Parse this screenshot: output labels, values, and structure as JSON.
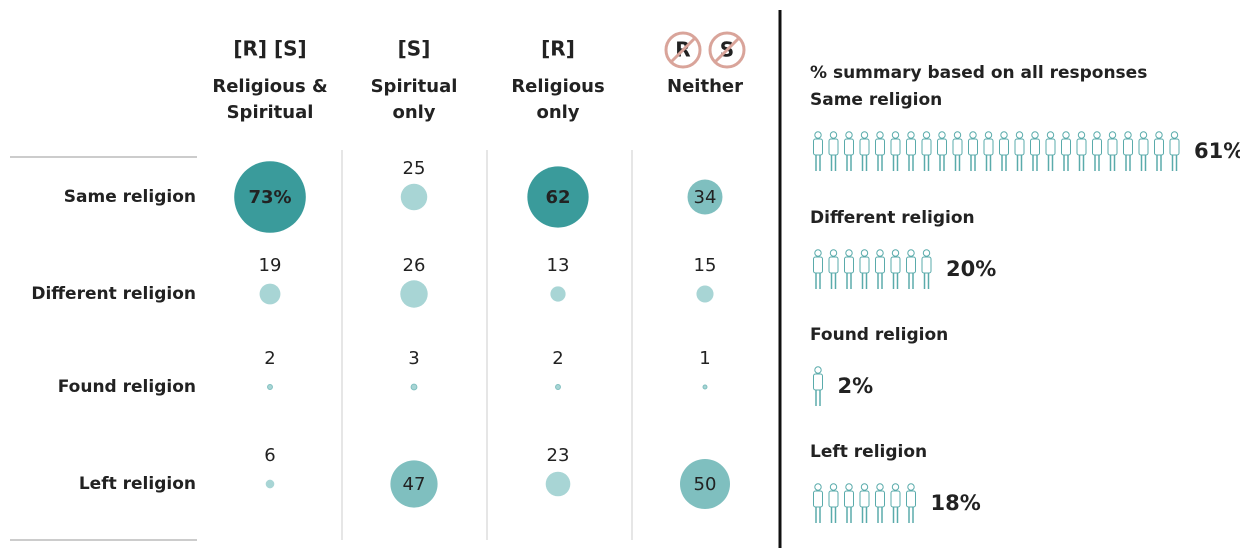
{
  "chart_data": [
    {
      "type": "bubble-matrix",
      "categories": [
        "Same religion",
        "Different religion",
        "Found religion",
        "Left religion"
      ],
      "series": [
        {
          "code": "[R] [S]",
          "lines": [
            "Religious &",
            "Spiritual"
          ],
          "values": [
            73,
            19,
            2,
            6
          ],
          "value_labels": [
            "73%",
            "19",
            "2",
            "6"
          ]
        },
        {
          "code": "[S]",
          "lines": [
            "Spiritual",
            "only"
          ],
          "values": [
            25,
            26,
            3,
            47
          ]
        },
        {
          "code": "[R]",
          "lines": [
            "Religious",
            "only"
          ],
          "values": [
            62,
            13,
            2,
            23
          ]
        },
        {
          "symbols": [
            "R",
            "S"
          ],
          "lines": [
            "Neither"
          ],
          "values": [
            34,
            15,
            1,
            50
          ]
        }
      ]
    },
    {
      "type": "pictograph",
      "title": "% summary based on all responses",
      "categories": [
        "Same religion",
        "Different religion",
        "Found religion",
        "Left religion"
      ],
      "values": [
        61,
        20,
        2,
        18
      ],
      "value_labels": [
        "61%",
        "20%",
        "2%",
        "18%"
      ],
      "color": "#5aabab"
    }
  ]
}
